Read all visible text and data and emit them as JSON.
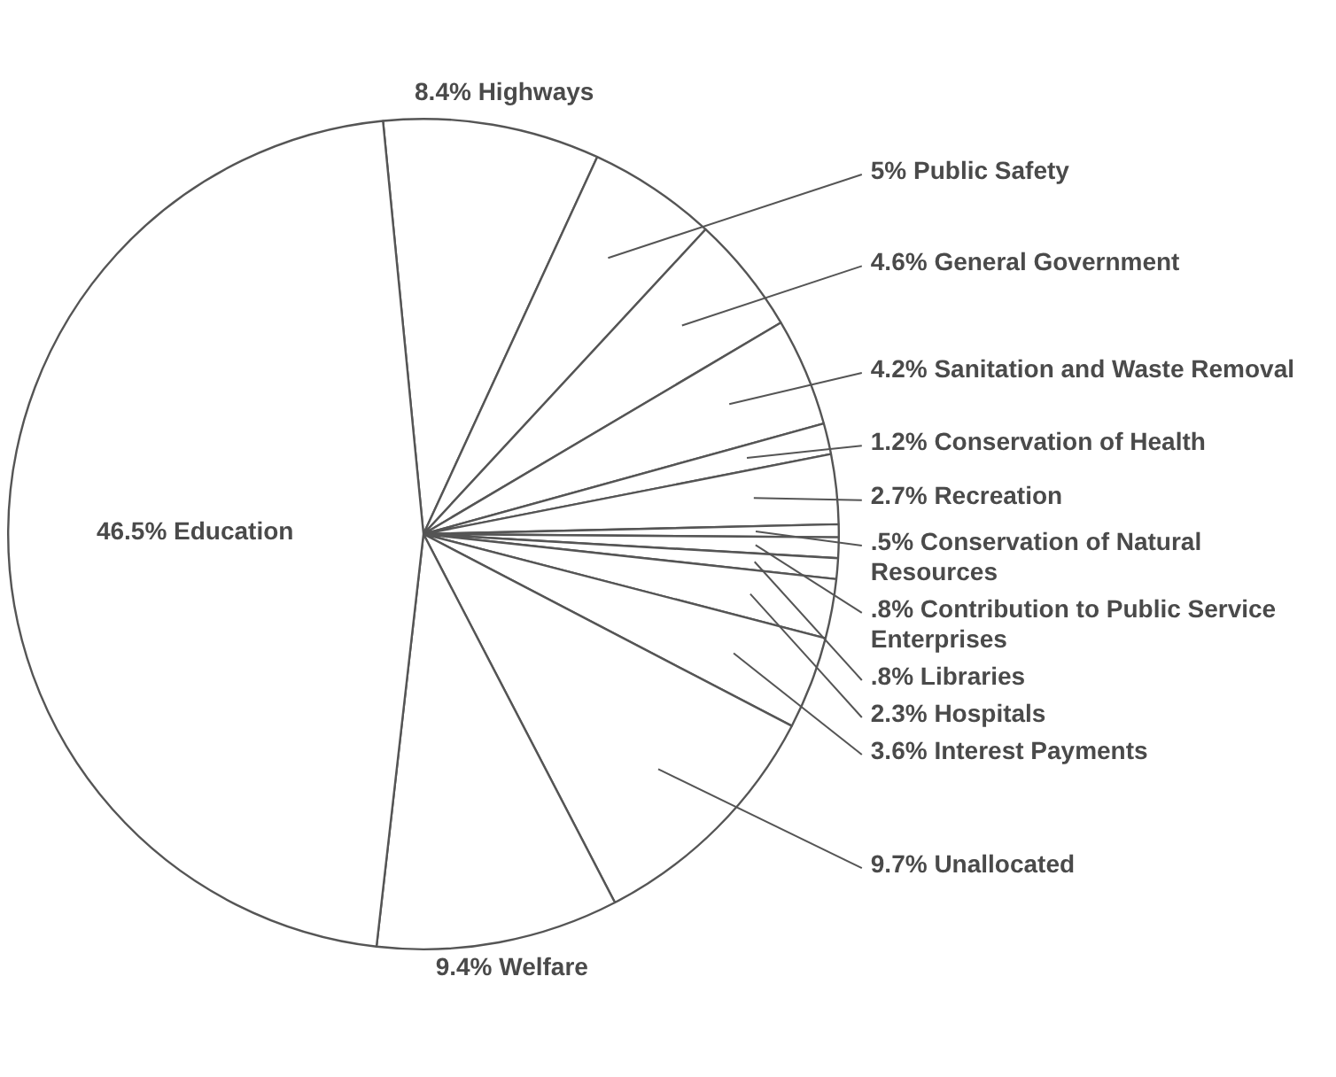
{
  "chart_data": {
    "type": "pie",
    "categories": [
      "Highways",
      "Public Safety",
      "General Government",
      "Sanitation and Waste Removal",
      "Conservation of Health",
      "Recreation",
      "Conservation of Natural Resources",
      "Contribution to Public Service Enterprises",
      "Libraries",
      "Hospitals",
      "Interest Payments",
      "Unallocated",
      "Welfare",
      "Education"
    ],
    "values": [
      8.4,
      5,
      4.6,
      4.2,
      1.2,
      2.7,
      0.5,
      0.8,
      0.8,
      2.3,
      3.6,
      9.7,
      9.4,
      46.5
    ],
    "value_labels": [
      "8.4%",
      "5%",
      "4.6%",
      "4.2%",
      "1.2%",
      "2.7%",
      ".5%",
      ".8%",
      ".8%",
      "2.3%",
      "3.6%",
      "9.7%",
      "9.4%",
      "46.5%"
    ],
    "colors": [
      "#ffffff",
      "#ffffff",
      "#ffffff",
      "#ffffff",
      "#ffffff",
      "#ffffff",
      "#ffffff",
      "#ffffff",
      "#ffffff",
      "#ffffff",
      "#ffffff",
      "#ffffff",
      "#ffffff",
      "#ffffff"
    ],
    "legend": false
  }
}
